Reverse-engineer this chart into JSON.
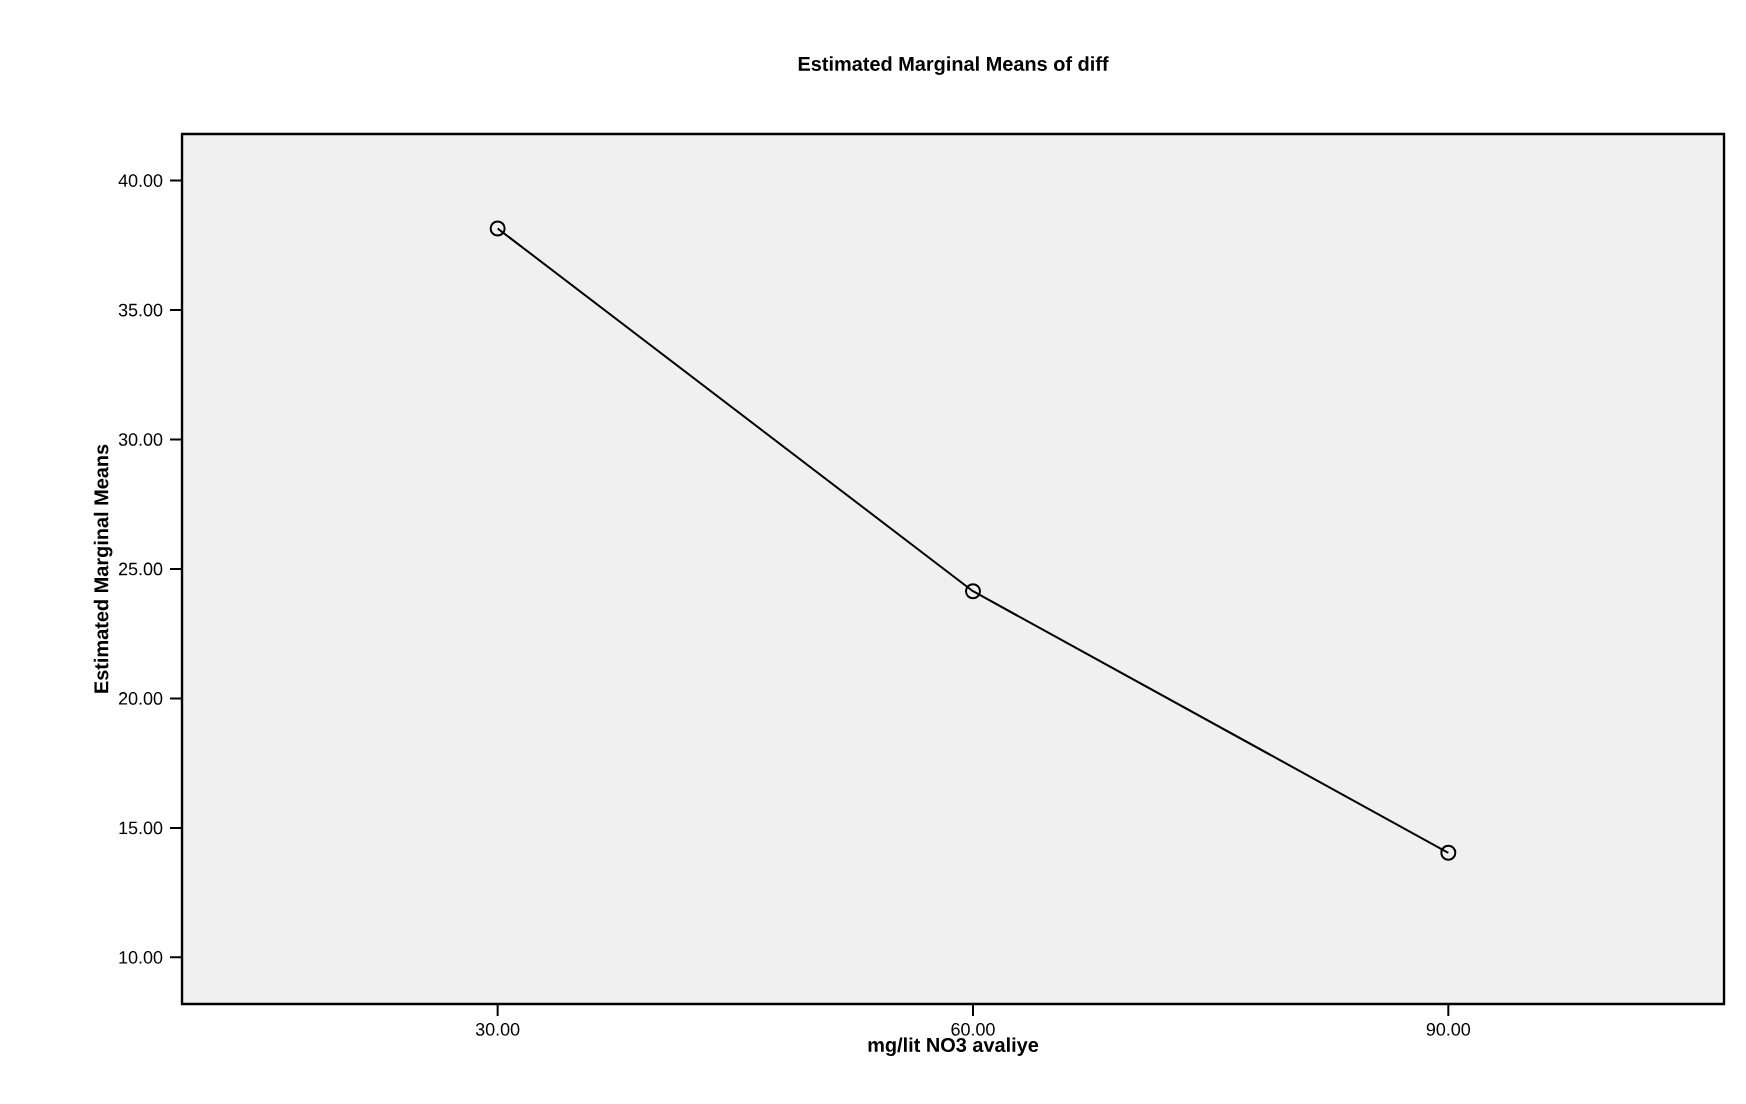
{
  "chart_data": {
    "type": "line",
    "title": "Estimated Marginal Means of diff",
    "xlabel": "mg/lit NO3 avaliye",
    "ylabel": "Estimated Marginal Means",
    "categories": [
      "30.00",
      "60.00",
      "90.00"
    ],
    "series": [
      {
        "color": "#000000",
        "values": [
          38.15,
          24.14,
          14.04
        ]
      }
    ],
    "ylim": [
      8.2,
      41.8
    ],
    "yticks": [
      {
        "value": 10,
        "label": "10.00"
      },
      {
        "value": 15,
        "label": "15.00"
      },
      {
        "value": 20,
        "label": "20.00"
      },
      {
        "value": 25,
        "label": "25.00"
      },
      {
        "value": 30,
        "label": "30.00"
      },
      {
        "value": 35,
        "label": "35.00"
      },
      {
        "value": 40,
        "label": "40.00"
      }
    ],
    "marker": "circle",
    "line_style": "solid"
  }
}
